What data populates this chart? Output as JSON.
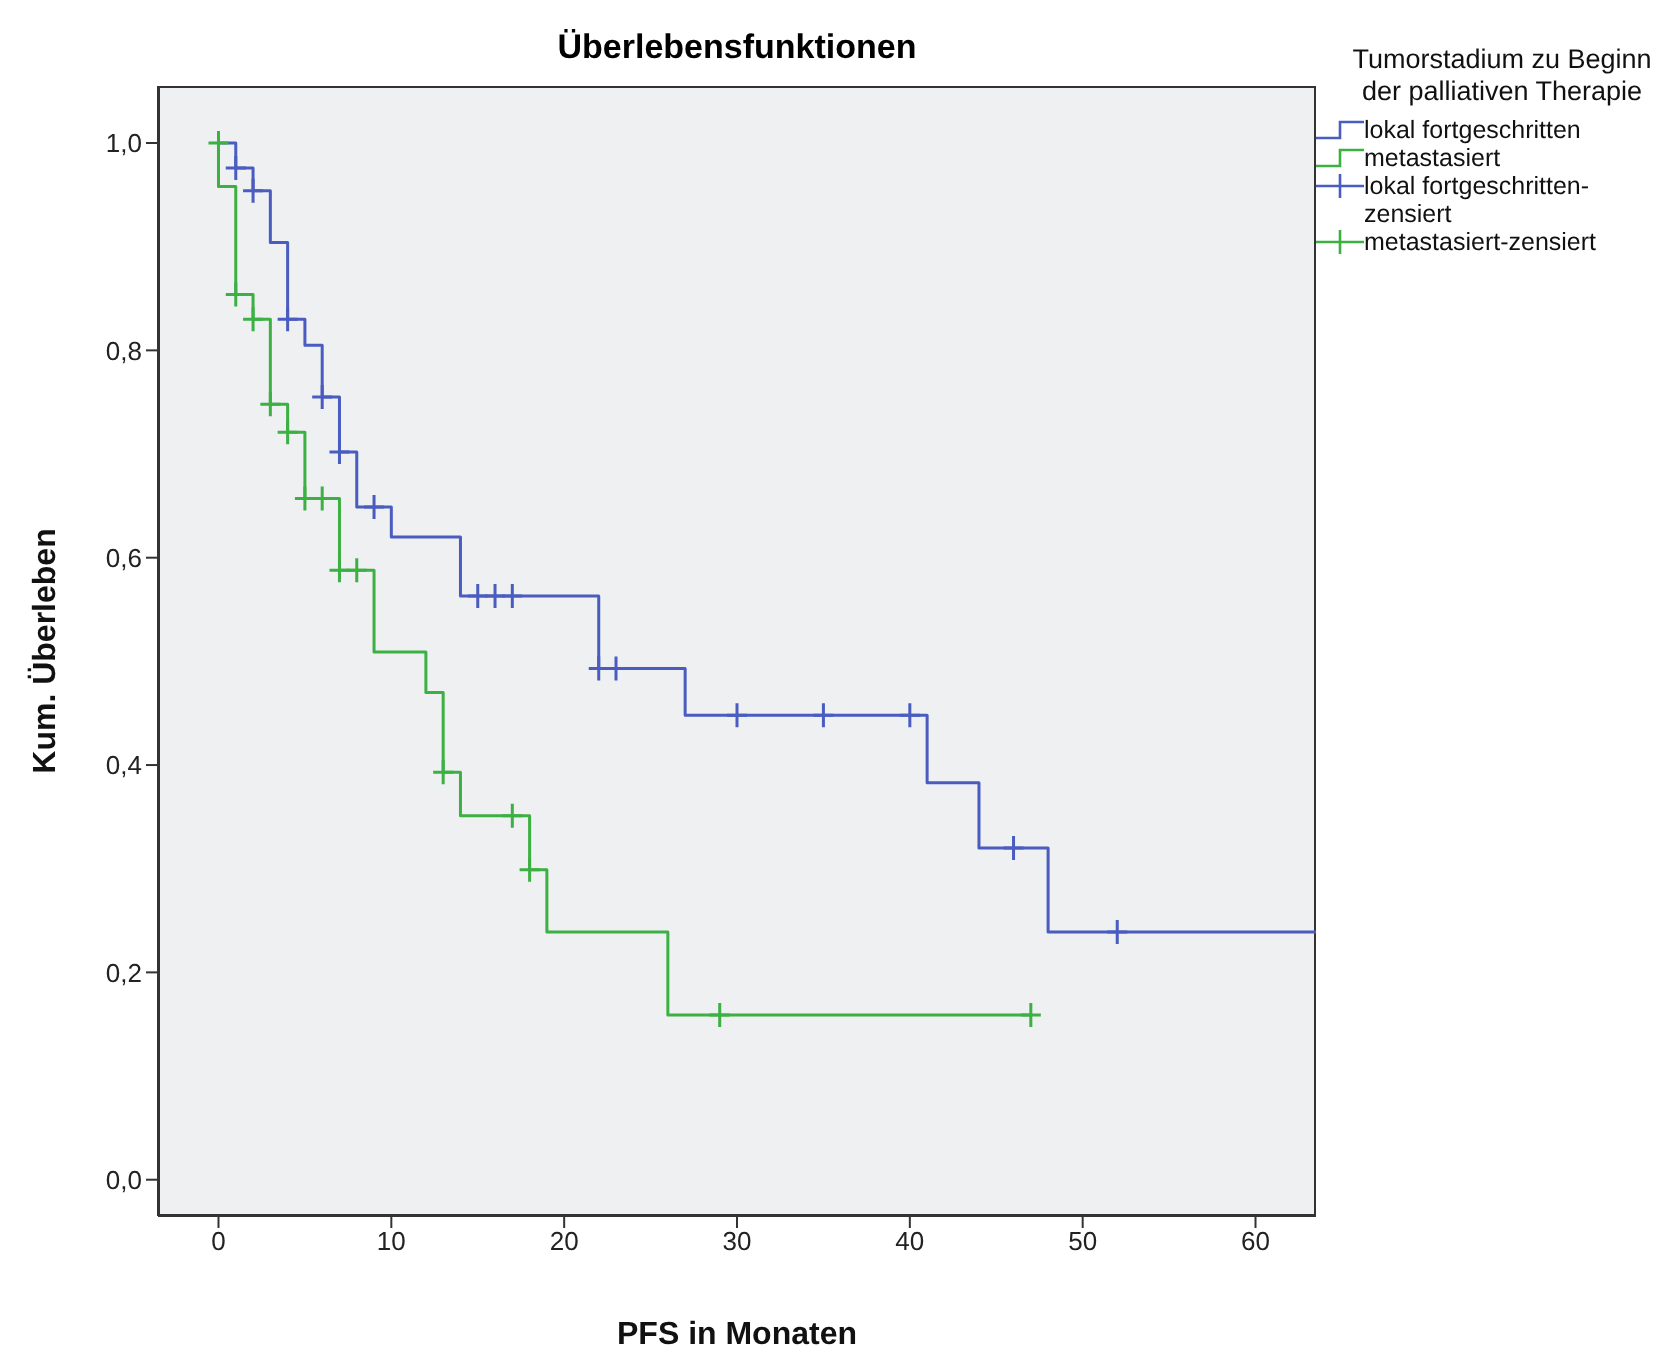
{
  "chart_data": {
    "type": "step",
    "title": "Überlebensfunktionen",
    "xlabel": "PFS in Monaten",
    "ylabel": "Kum. Überleben",
    "legend_title": "Tumorstadium zu Beginn der palliativen Therapie",
    "legend": "right",
    "grid": false,
    "line_style": "solid",
    "marker": "none",
    "xlim": [
      -3.5,
      63.5
    ],
    "xticks": [
      0,
      10,
      20,
      30,
      40,
      50,
      60
    ],
    "ylim": [
      -0.035,
      1.055
    ],
    "yticks": [
      {
        "value": 0,
        "label": "0,0"
      },
      {
        "value": 0.2,
        "label": "0,2"
      },
      {
        "value": 0.4,
        "label": "0,4"
      },
      {
        "value": 0.6,
        "label": "0,6"
      },
      {
        "value": 0.8,
        "label": "0,8"
      },
      {
        "value": 1,
        "label": "1,0"
      }
    ],
    "series": [
      {
        "name": "lokal fortgeschritten",
        "color": "#4a5cc0",
        "x": [
          0,
          1,
          2,
          3,
          4,
          5,
          6,
          7,
          8,
          10,
          14,
          22,
          27,
          41,
          44,
          48,
          63.5
        ],
        "values": [
          1,
          0.976,
          0.954,
          0.904,
          0.83,
          0.805,
          0.755,
          0.702,
          0.649,
          0.62,
          0.563,
          0.493,
          0.448,
          0.383,
          0.32,
          0.239,
          0.239
        ]
      },
      {
        "name": "metastasiert",
        "color": "#3cb043",
        "x": [
          0,
          0,
          1,
          2,
          3,
          4,
          5,
          7,
          9,
          12,
          13,
          14,
          18,
          19,
          26,
          47
        ],
        "values": [
          1,
          0.958,
          0.854,
          0.83,
          0.748,
          0.721,
          0.657,
          0.588,
          0.509,
          0.47,
          0.393,
          0.351,
          0.299,
          0.239,
          0.159,
          0.159
        ]
      },
      {
        "name": "lokal fortgeschritten-zensiert",
        "type": "scatter",
        "marker": "cross",
        "color": "#4a5cc0",
        "x": [
          1,
          2,
          4,
          6,
          7,
          9,
          15,
          16,
          17,
          22,
          23,
          30,
          35,
          40,
          46,
          52
        ],
        "values": [
          0.976,
          0.954,
          0.83,
          0.755,
          0.702,
          0.649,
          0.563,
          0.563,
          0.563,
          0.493,
          0.493,
          0.448,
          0.448,
          0.448,
          0.32,
          0.239
        ]
      },
      {
        "name": "metastasiert-zensiert",
        "type": "scatter",
        "marker": "cross",
        "color": "#3cb043",
        "x": [
          0,
          1,
          2,
          3,
          4,
          5,
          6,
          7,
          8,
          13,
          17,
          18,
          29,
          47
        ],
        "values": [
          1,
          0.854,
          0.83,
          0.748,
          0.721,
          0.657,
          0.657,
          0.588,
          0.588,
          0.393,
          0.351,
          0.299,
          0.159,
          0.159
        ]
      }
    ]
  }
}
